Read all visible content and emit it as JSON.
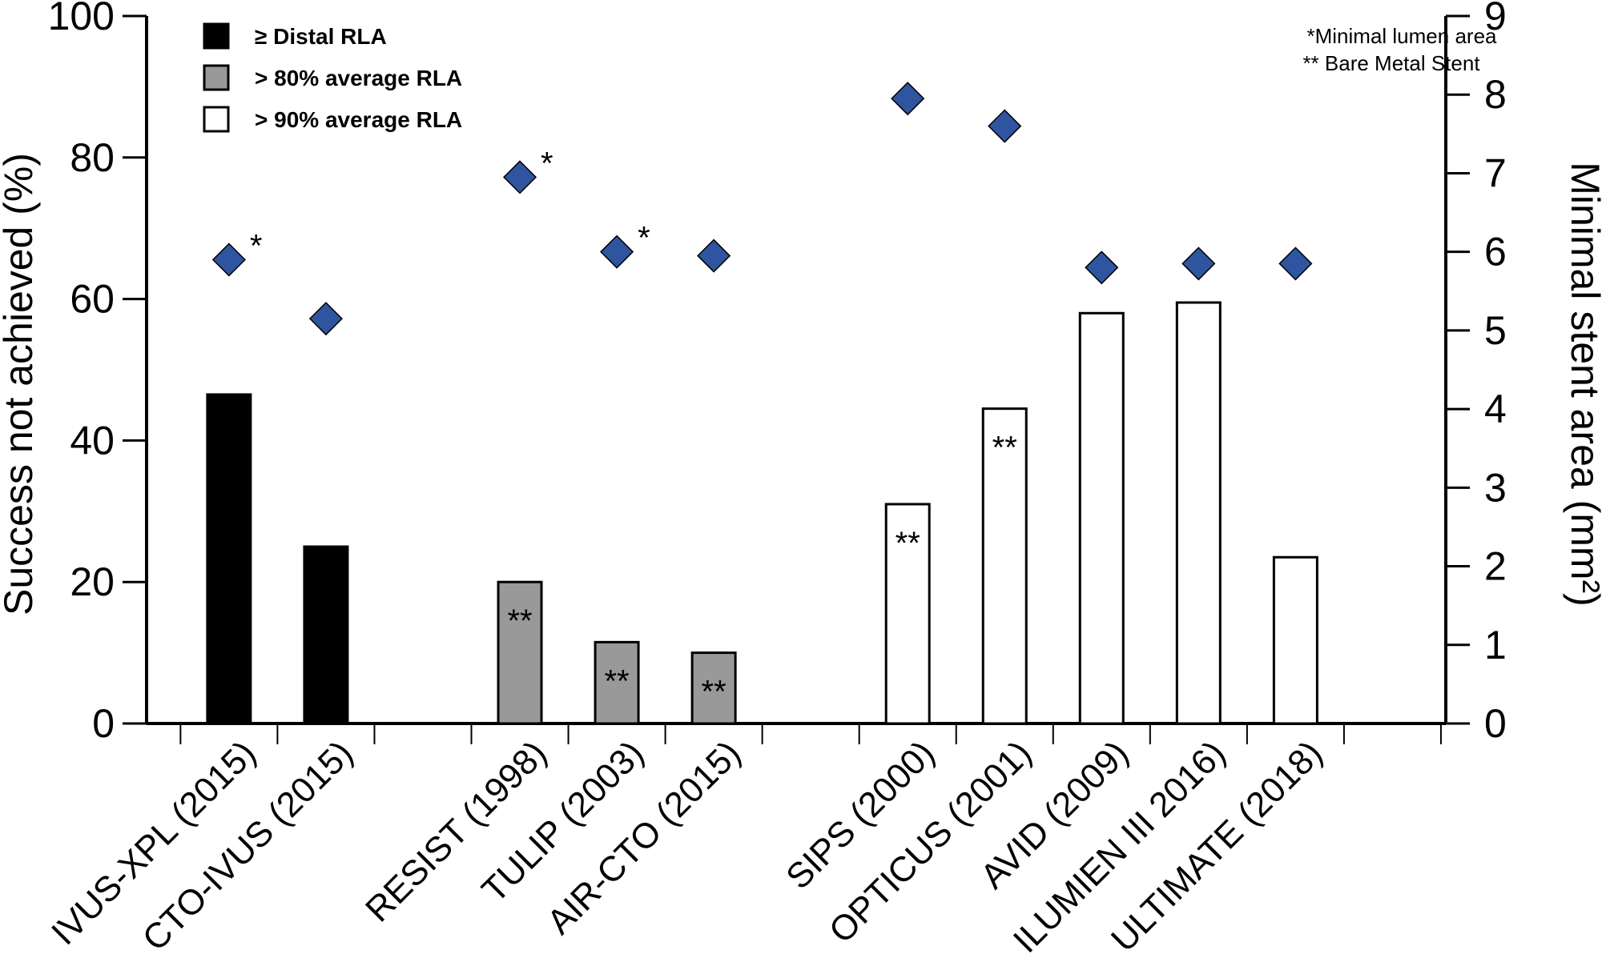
{
  "chart_data": {
    "type": "bar",
    "ylabel_left": "Success not achieved (%)",
    "ylabel_right": "Minimal stent area (mm²)",
    "ylim_left": [
      0,
      100
    ],
    "ylim_right": [
      0,
      9
    ],
    "yticks_left": [
      "0",
      "20",
      "40",
      "60",
      "80",
      "100"
    ],
    "yticks_right": [
      "0",
      "1",
      "2",
      "3",
      "4",
      "5",
      "6",
      "7",
      "8",
      "9"
    ],
    "grid": false,
    "legend_position": "top-left",
    "legend": [
      {
        "label": "≥ Distal RLA",
        "color": "#000000"
      },
      {
        "label": "> 80% average RLA",
        "color": "#999999"
      },
      {
        "label": "> 90% average RLA",
        "color": "#ffffff"
      }
    ],
    "notes": [
      "*Minimal lumen area",
      "** Bare Metal Stent"
    ],
    "marker_color": "#2f54a0",
    "categories": [
      "IVUS-XPL (2015)",
      "CTO-IVUS (2015)",
      "RESIST (1998)",
      "TULIP (2003)",
      "AIR-CTO (2015)",
      "SIPS (2000)",
      "OPTICUS (2001)",
      "AVID (2009)",
      "ILUMIEN III 2016)",
      "ULTIMATE (2018)"
    ],
    "groups": [
      0,
      0,
      1,
      1,
      1,
      2,
      2,
      2,
      2,
      2
    ],
    "success_not_achieved_pct": [
      46.5,
      25,
      20,
      11.5,
      10,
      31,
      44.5,
      58,
      59.5,
      23.5
    ],
    "minimal_stent_area_mm2": [
      5.9,
      5.15,
      6.95,
      6.0,
      5.95,
      7.95,
      7.6,
      5.8,
      5.85,
      5.85
    ],
    "bar_annotations": [
      "",
      "",
      "**",
      "**",
      "**",
      "**",
      "**",
      "",
      "",
      ""
    ],
    "marker_annotations": [
      "*",
      "",
      "*",
      "*",
      "",
      "",
      "",
      "",
      "",
      ""
    ]
  }
}
